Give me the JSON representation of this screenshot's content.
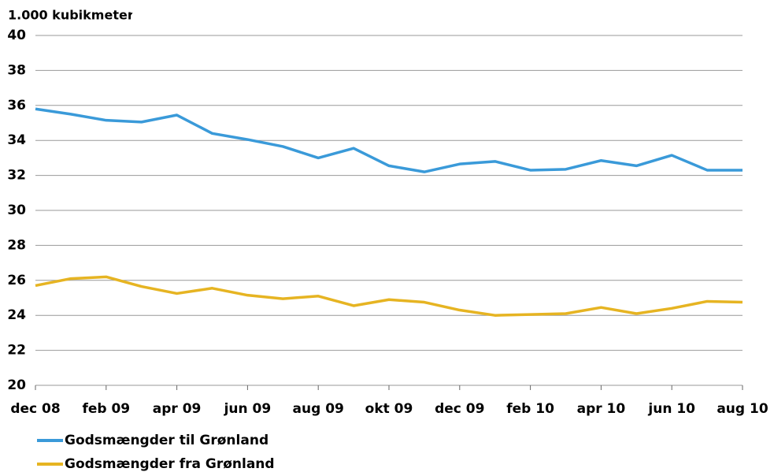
{
  "chart_data": {
    "type": "line",
    "y_label": "1.000 kubikmeter",
    "categories": [
      "dec 08",
      null,
      "feb 09",
      null,
      "apr 09",
      null,
      "jun 09",
      null,
      "aug 09",
      null,
      "okt 09",
      null,
      "dec 09",
      null,
      "feb 10",
      null,
      "apr 10",
      null,
      "jun 10",
      null,
      "aug 10"
    ],
    "series": [
      {
        "name": "Godsmængder til Grønland",
        "color": "#3a9ad9",
        "values": [
          35.8,
          35.5,
          35.15,
          35.05,
          35.45,
          34.4,
          34.05,
          33.65,
          33.0,
          33.55,
          32.55,
          32.2,
          32.65,
          32.8,
          32.3,
          32.35,
          32.85,
          32.55,
          33.15,
          32.3,
          32.3
        ]
      },
      {
        "name": "Godsmængder fra Grønland",
        "color": "#e6b422",
        "values": [
          25.7,
          26.1,
          26.2,
          25.65,
          25.25,
          25.55,
          25.15,
          24.95,
          25.1,
          24.55,
          24.9,
          24.75,
          24.3,
          24.0,
          24.05,
          24.1,
          24.45,
          24.1,
          24.4,
          24.8,
          24.75
        ]
      }
    ],
    "ylim": [
      20,
      40
    ],
    "yticks": [
      20,
      22,
      24,
      26,
      28,
      30,
      32,
      34,
      36,
      38,
      40
    ],
    "grid": true
  }
}
